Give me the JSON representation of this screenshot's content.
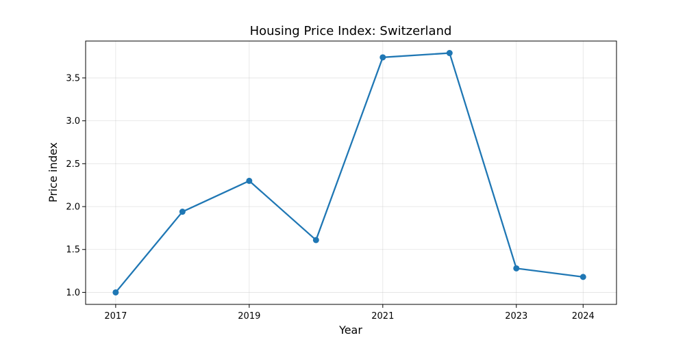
{
  "chart_data": {
    "type": "line",
    "title": "Housing Price Index: Switzerland",
    "xlabel": "Year",
    "ylabel": "Price index",
    "x": [
      2017,
      2018,
      2019,
      2020,
      2021,
      2022,
      2023,
      2024
    ],
    "series": [
      {
        "values": [
          1.0,
          1.94,
          2.3,
          1.61,
          3.74,
          3.79,
          1.28,
          1.18
        ],
        "color": "#1f77b4"
      }
    ],
    "xticks": [
      2017,
      2019,
      2021,
      2023,
      2024
    ],
    "yticks": [
      1.0,
      1.5,
      2.0,
      2.5,
      3.0,
      3.5
    ],
    "xlim": [
      2016.55,
      2024.5
    ],
    "ylim": [
      0.86,
      3.93
    ],
    "grid": true,
    "legend": "none"
  }
}
